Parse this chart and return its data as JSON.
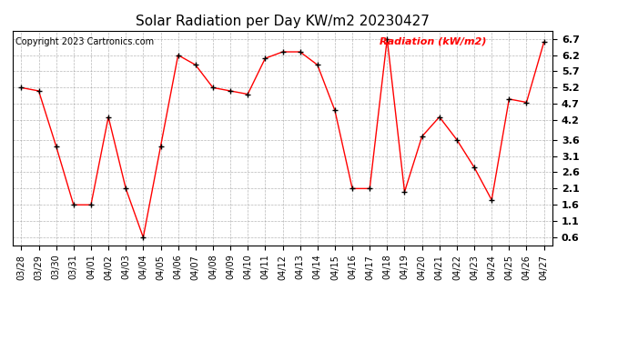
{
  "title": "Solar Radiation per Day KW/m2 20230427",
  "copyright": "Copyright 2023 Cartronics.com",
  "legend_label": "Radiation (kW/m2)",
  "dates": [
    "03/28",
    "03/29",
    "03/30",
    "03/31",
    "04/01",
    "04/02",
    "04/03",
    "04/04",
    "04/05",
    "04/06",
    "04/07",
    "04/08",
    "04/09",
    "04/10",
    "04/11",
    "04/12",
    "04/13",
    "04/14",
    "04/15",
    "04/16",
    "04/17",
    "04/18",
    "04/19",
    "04/20",
    "04/21",
    "04/22",
    "04/23",
    "04/24",
    "04/25",
    "04/26",
    "04/27"
  ],
  "values": [
    5.2,
    5.1,
    3.4,
    1.6,
    1.6,
    4.3,
    2.1,
    0.6,
    3.4,
    6.2,
    5.9,
    5.2,
    5.1,
    5.0,
    6.1,
    6.3,
    6.3,
    5.9,
    4.5,
    2.1,
    2.1,
    6.7,
    2.0,
    3.7,
    4.3,
    3.6,
    2.75,
    1.75,
    4.85,
    4.75,
    6.6
  ],
  "ylim_min": 0.35,
  "ylim_max": 6.95,
  "yticks": [
    0.6,
    1.1,
    1.6,
    2.1,
    2.6,
    3.1,
    3.6,
    4.2,
    4.7,
    5.2,
    5.7,
    6.2,
    6.7
  ],
  "line_color": "red",
  "marker_color": "black",
  "marker": "+",
  "bg_color": "#ffffff",
  "grid_color": "#999999",
  "title_fontsize": 11,
  "copyright_fontsize": 7,
  "legend_fontsize": 8,
  "tick_fontsize": 7,
  "ytick_fontsize": 8
}
